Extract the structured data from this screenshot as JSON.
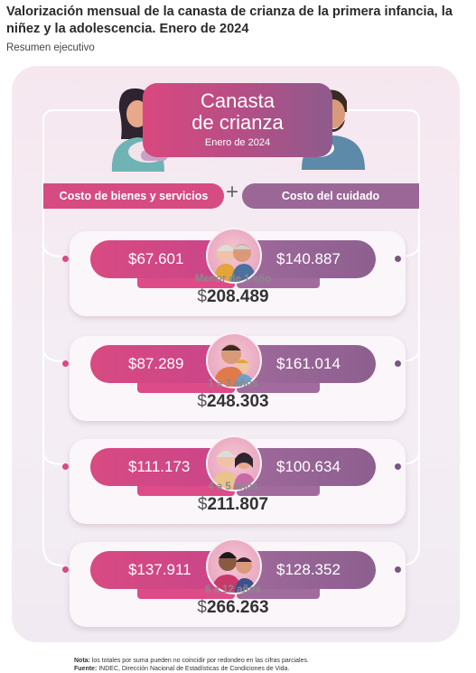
{
  "header": {
    "title": "Valorización mensual de la canasta de crianza de la primera infancia, la niñez y la adolescencia. Enero de 2024",
    "subtitle": "Resumen ejecutivo"
  },
  "center_card": {
    "title_line1": "Canasta",
    "title_line2": "de crianza",
    "date": "Enero de 2024"
  },
  "columns": {
    "left_label": "Costo de bienes y servicios",
    "plus": "+",
    "right_label": "Costo del cuidado"
  },
  "rows": [
    {
      "goods": "$67.601",
      "care": "$140.887",
      "age": "Menor de 1 año",
      "currency": "$",
      "total": "208.489"
    },
    {
      "goods": "$87.289",
      "care": "$161.014",
      "age": "1 a 3 años",
      "currency": "$",
      "total": "248.303"
    },
    {
      "goods": "$111.173",
      "care": "$100.634",
      "age": "4 a 5 años",
      "currency": "$",
      "total": "211.807"
    },
    {
      "goods": "$137.911",
      "care": "$128.352",
      "age": "6 a 12 años",
      "currency": "$",
      "total": "266.263"
    }
  ],
  "footer": {
    "note_label": "Nota:",
    "note_text": " los totales por suma pueden no coincidir por redondeo en las cifras parciales.",
    "source_label": "Fuente:",
    "source_text": " INDEC, Dirección Nacional de Estadísticas de Condiciones de Vida."
  },
  "colors": {
    "pink": "#d54b82",
    "purple": "#9a6797",
    "panel": "#f6e7ef"
  }
}
